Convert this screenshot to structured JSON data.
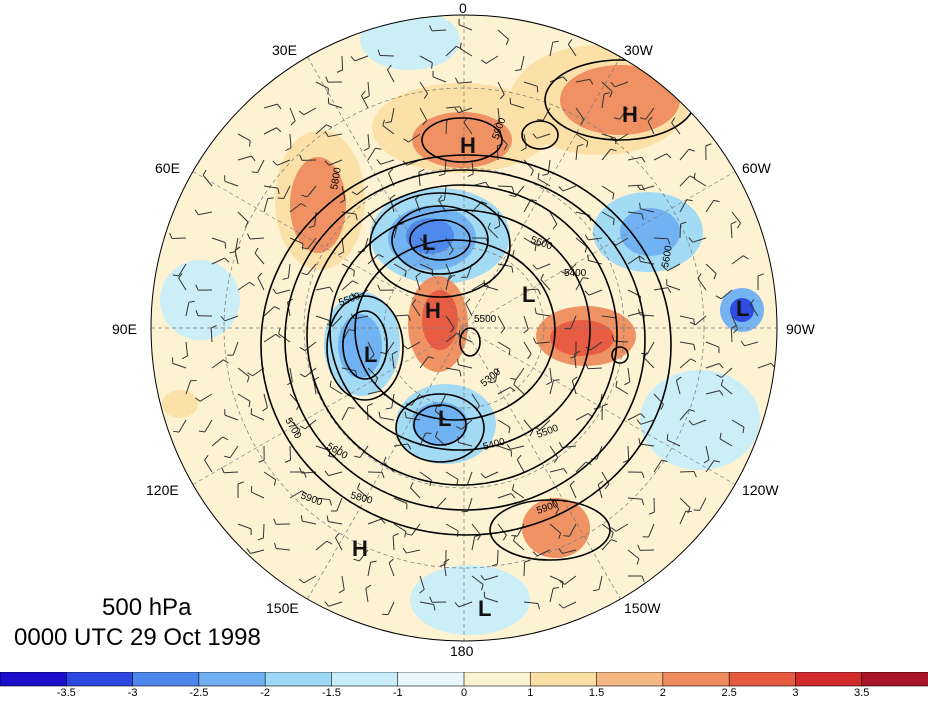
{
  "title": {
    "level": "500 hPa",
    "time": "0000 UTC 29 Oct 1998"
  },
  "longitude_labels": {
    "lon_0": "0",
    "lon_30w": "30W",
    "lon_60w": "60W",
    "lon_90w": "90W",
    "lon_120w": "120W",
    "lon_150w": "150W",
    "lon_180": "180",
    "lon_150e": "150E",
    "lon_120e": "120E",
    "lon_90e": "90E",
    "lon_60e": "60E",
    "lon_30e": "30E"
  },
  "pressure_centers": {
    "h1": "H",
    "h2": "H",
    "h3": "H",
    "h4": "H",
    "l1": "L",
    "l2": "L",
    "l3": "L",
    "l4": "L",
    "l5": "L",
    "l6": "L"
  },
  "contour_labels": {
    "c1": "5900",
    "c2": "5800",
    "c3": "5600",
    "c4": "5500",
    "c5": "5400",
    "c6": "5300",
    "c7": "5900",
    "c8": "5800",
    "c9": "5700",
    "c10": "5600",
    "c11": "5500",
    "c12": "5400",
    "c13": "5500",
    "c14": "5600",
    "c15": "5900"
  },
  "colorbar": {
    "ticks": [
      "-3.5",
      "-3",
      "-2.5",
      "-2",
      "-1.5",
      "-1",
      "0",
      "1",
      "1.5",
      "2",
      "2.5",
      "3",
      "3.5"
    ],
    "colors": [
      "#1c0fcc",
      "#2b47e0",
      "#4d87ec",
      "#6fb0f2",
      "#9ed8f6",
      "#c8edf9",
      "#e9f7fb",
      "#fdf3d2",
      "#fbdfa4",
      "#f5b883",
      "#ee8c5e",
      "#e65a40",
      "#d02a2a",
      "#a81428"
    ]
  }
}
